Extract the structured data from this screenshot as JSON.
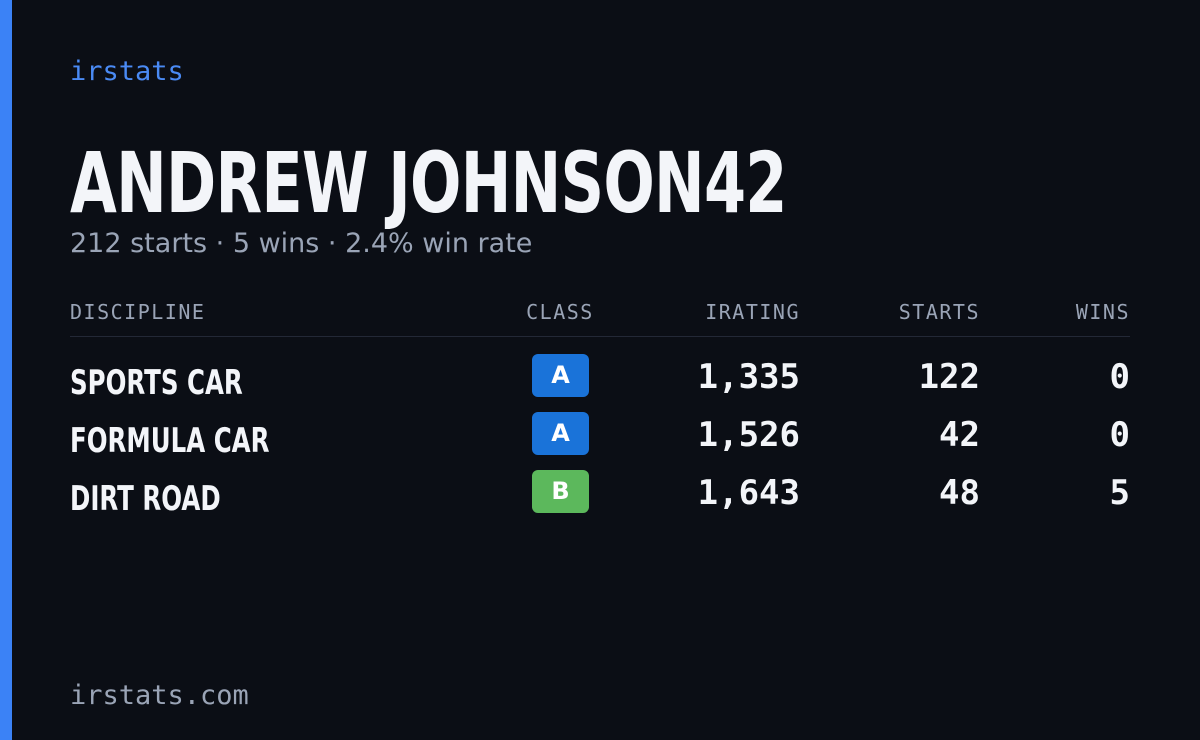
{
  "brand": "irstats",
  "profile": {
    "name": "ANDREW JOHNSON42",
    "summary": "212 starts · 5 wins · 2.4% win rate"
  },
  "table": {
    "headers": [
      "DISCIPLINE",
      "CLASS",
      "IRATING",
      "STARTS",
      "WINS"
    ],
    "rows": [
      [
        "SPORTS CAR",
        "A",
        "1,335",
        "122",
        "0"
      ],
      [
        "FORMULA CAR",
        "A",
        "1,526",
        "42",
        "0"
      ],
      [
        "DIRT ROAD",
        "B",
        "1,643",
        "48",
        "5"
      ]
    ]
  },
  "footer": "irstats.com"
}
